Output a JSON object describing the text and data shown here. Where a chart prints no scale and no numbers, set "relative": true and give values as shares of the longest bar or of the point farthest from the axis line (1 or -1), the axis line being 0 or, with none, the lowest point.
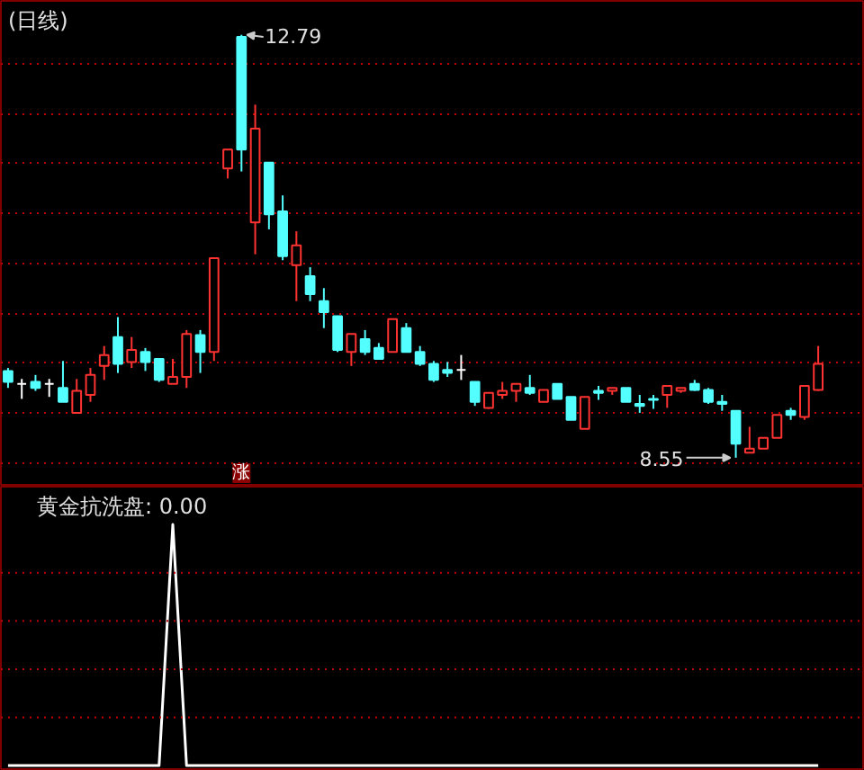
{
  "chart_data": [
    {
      "type": "candlestick",
      "title": "(日线)",
      "categories": [
        null,
        null,
        null,
        null,
        null,
        null,
        null,
        null,
        null,
        null,
        null,
        null,
        null,
        null,
        null,
        null,
        null,
        null,
        null,
        null,
        null,
        null,
        null,
        null,
        null,
        null,
        null,
        null,
        null,
        null,
        null,
        null,
        null,
        null,
        null,
        null,
        null,
        null,
        null,
        null,
        null,
        null,
        null,
        null,
        null,
        null,
        null,
        null,
        null,
        null,
        null,
        null,
        null,
        null,
        null,
        null,
        null,
        null,
        null,
        null
      ],
      "ohlc": [
        [
          9.42,
          9.45,
          9.25,
          9.31
        ],
        [
          9.29,
          9.34,
          9.14,
          9.29
        ],
        [
          9.31,
          9.38,
          9.22,
          9.25
        ],
        [
          9.29,
          9.34,
          9.16,
          9.29
        ],
        [
          9.25,
          9.52,
          9.11,
          9.11
        ],
        [
          9.0,
          9.34,
          9.0,
          9.22
        ],
        [
          9.18,
          9.45,
          9.11,
          9.38
        ],
        [
          9.47,
          9.67,
          9.33,
          9.58
        ],
        [
          9.76,
          9.96,
          9.4,
          9.49
        ],
        [
          9.51,
          9.76,
          9.45,
          9.63
        ],
        [
          9.61,
          9.65,
          9.42,
          9.51
        ],
        [
          9.54,
          9.54,
          9.31,
          9.33
        ],
        [
          9.29,
          9.54,
          9.29,
          9.36
        ],
        [
          9.36,
          9.83,
          9.25,
          9.79
        ],
        [
          9.78,
          9.83,
          9.4,
          9.61
        ],
        [
          9.61,
          10.55,
          9.52,
          10.55
        ],
        [
          11.45,
          11.64,
          11.35,
          11.64
        ],
        [
          12.77,
          12.79,
          11.42,
          11.64
        ],
        [
          10.91,
          12.09,
          10.59,
          11.85
        ],
        [
          11.51,
          11.51,
          10.84,
          10.99
        ],
        [
          11.02,
          11.18,
          10.53,
          10.57
        ],
        [
          10.48,
          10.82,
          10.12,
          10.68
        ],
        [
          10.37,
          10.46,
          10.12,
          10.19
        ],
        [
          10.12,
          10.25,
          9.85,
          10.01
        ],
        [
          9.97,
          9.97,
          9.61,
          9.63
        ],
        [
          9.61,
          9.79,
          9.47,
          9.79
        ],
        [
          9.74,
          9.83,
          9.58,
          9.61
        ],
        [
          9.65,
          9.7,
          9.54,
          9.54
        ],
        [
          9.61,
          9.94,
          9.61,
          9.94
        ],
        [
          9.85,
          9.9,
          9.61,
          9.61
        ],
        [
          9.61,
          9.67,
          9.47,
          9.49
        ],
        [
          9.49,
          9.52,
          9.31,
          9.33
        ],
        [
          9.43,
          9.51,
          9.36,
          9.4
        ],
        [
          9.43,
          9.58,
          9.33,
          9.43
        ],
        [
          9.31,
          9.31,
          9.07,
          9.11
        ],
        [
          9.05,
          9.2,
          9.04,
          9.2
        ],
        [
          9.18,
          9.31,
          9.14,
          9.22
        ],
        [
          9.22,
          9.29,
          9.11,
          9.29
        ],
        [
          9.25,
          9.38,
          9.18,
          9.2
        ],
        [
          9.11,
          9.23,
          9.11,
          9.23
        ],
        [
          9.29,
          9.29,
          9.14,
          9.14
        ],
        [
          9.16,
          9.16,
          8.93,
          8.93
        ],
        [
          8.84,
          9.16,
          8.84,
          9.16
        ],
        [
          9.22,
          9.27,
          9.13,
          9.2
        ],
        [
          9.22,
          9.25,
          9.18,
          9.25
        ],
        [
          9.25,
          9.25,
          9.11,
          9.11
        ],
        [
          9.09,
          9.18,
          9.0,
          9.07
        ],
        [
          9.14,
          9.18,
          9.04,
          9.13
        ],
        [
          9.18,
          9.27,
          9.05,
          9.27
        ],
        [
          9.22,
          9.25,
          9.2,
          9.25
        ],
        [
          9.29,
          9.33,
          9.22,
          9.23
        ],
        [
          9.23,
          9.25,
          9.09,
          9.11
        ],
        [
          9.11,
          9.18,
          9.02,
          9.09
        ],
        [
          9.02,
          9.02,
          8.55,
          8.69
        ],
        [
          8.6,
          8.86,
          8.6,
          8.64
        ],
        [
          8.64,
          8.75,
          8.64,
          8.75
        ],
        [
          8.75,
          8.98,
          8.75,
          8.98
        ],
        [
          9.02,
          9.05,
          8.93,
          8.98
        ],
        [
          8.96,
          9.27,
          8.93,
          9.27
        ],
        [
          9.23,
          9.67,
          9.22,
          9.49
        ]
      ],
      "colors": [
        "#54ffff",
        "#ffffff",
        "#54ffff",
        "#ffffff",
        "#54ffff",
        "#ff3232",
        "#ff3232",
        "#ff3232",
        "#54ffff",
        "#ff3232",
        "#54ffff",
        "#54ffff",
        "#ff3232",
        "#ff3232",
        "#54ffff",
        "#ff3232",
        "#ff3232",
        "#54ffff",
        "#ff3232",
        "#54ffff",
        "#54ffff",
        "#ff3232",
        "#54ffff",
        "#54ffff",
        "#54ffff",
        "#ff3232",
        "#54ffff",
        "#54ffff",
        "#ff3232",
        "#54ffff",
        "#54ffff",
        "#54ffff",
        "#54ffff",
        "#ffffff",
        "#54ffff",
        "#ff3232",
        "#ff3232",
        "#ff3232",
        "#54ffff",
        "#ff3232",
        "#54ffff",
        "#54ffff",
        "#ff3232",
        "#54ffff",
        "#ff3232",
        "#54ffff",
        "#54ffff",
        "#54ffff",
        "#ff3232",
        "#ff3232",
        "#54ffff",
        "#54ffff",
        "#54ffff",
        "#54ffff",
        "#ff3232",
        "#ff3232",
        "#ff3232",
        "#54ffff",
        "#ff3232",
        "#ff3232"
      ],
      "ylim": [
        8.26,
        13.13
      ],
      "yticks": [
        {
          "value": 8.5,
          "label": null
        },
        {
          "value": 9,
          "label": null
        },
        {
          "value": 9.5,
          "label": null
        },
        {
          "value": 10,
          "label": null
        },
        {
          "value": 10.5,
          "label": null
        },
        {
          "value": 11,
          "label": null
        },
        {
          "value": 11.5,
          "label": null
        },
        {
          "value": 12,
          "label": null
        },
        {
          "value": 12.5,
          "label": null
        }
      ],
      "grid": "y",
      "tick_labels": false,
      "annotations": [
        "12.79",
        "8.55",
        "涨"
      ]
    },
    {
      "type": "line",
      "title": "黄金抗洗盘: 0.00",
      "relative": true,
      "tick_labels": false,
      "categories": [
        null,
        null,
        null,
        null,
        null,
        null,
        null,
        null,
        null,
        null,
        null,
        null,
        null,
        null,
        null,
        null,
        null,
        null,
        null,
        null,
        null,
        null,
        null,
        null,
        null,
        null,
        null,
        null,
        null,
        null,
        null,
        null,
        null,
        null,
        null,
        null,
        null,
        null,
        null,
        null,
        null,
        null,
        null,
        null,
        null,
        null,
        null,
        null,
        null,
        null,
        null,
        null,
        null,
        null,
        null,
        null,
        null,
        null,
        null,
        null
      ],
      "series": [
        {
          "color": "#ffffff",
          "values": [
            0,
            0,
            0,
            0,
            0,
            0,
            0,
            0,
            0,
            0,
            0,
            0,
            1,
            0,
            0,
            0,
            0,
            0,
            0,
            0,
            0,
            0,
            0,
            0,
            0,
            0,
            0,
            0,
            0,
            0,
            0,
            0,
            0,
            0,
            0,
            0,
            0,
            0,
            0,
            0,
            0,
            0,
            0,
            0,
            0,
            0,
            0,
            0,
            0,
            0,
            0,
            0,
            0,
            0,
            0,
            0,
            0,
            0,
            0,
            0
          ]
        }
      ],
      "ref_lines": [
        {
          "axis": "y",
          "value": 0.2,
          "color": "#c00000",
          "line_style": "dotted"
        },
        {
          "axis": "y",
          "value": 0.4,
          "color": "#c00000",
          "line_style": "dotted"
        },
        {
          "axis": "y",
          "value": 0.6,
          "color": "#c00000",
          "line_style": "dotted"
        },
        {
          "axis": "y",
          "value": 0.8,
          "color": "#c00000",
          "line_style": "dotted"
        }
      ]
    }
  ]
}
